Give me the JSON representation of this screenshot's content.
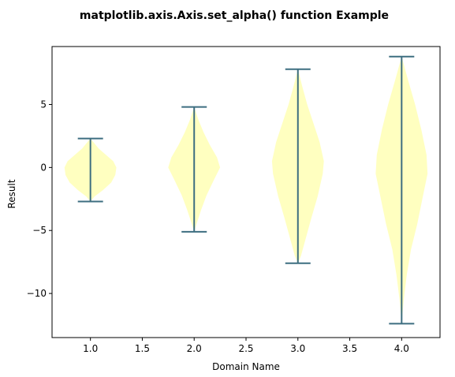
{
  "chart_data": {
    "type": "violin",
    "title": "matplotlib.axis.Axis.set_alpha() function Example",
    "xlabel": "Domain Name",
    "ylabel": "Result",
    "xlim": [
      0.63,
      4.37
    ],
    "ylim": [
      -13.5,
      9.6
    ],
    "xticks": [
      1.0,
      1.5,
      2.0,
      2.5,
      3.0,
      3.5,
      4.0
    ],
    "xtick_labels": [
      "1.0",
      "1.5",
      "2.0",
      "2.5",
      "3.0",
      "3.5",
      "4.0"
    ],
    "yticks": [
      5,
      0,
      -5,
      -10
    ],
    "ytick_labels": [
      "5",
      "0",
      "−5",
      "−10"
    ],
    "grid": false,
    "colors": {
      "body_fill": "#ffffc0",
      "line": "#3d6e80"
    },
    "violins": [
      {
        "position": 1,
        "min": -2.7,
        "max": 2.3,
        "profile": [
          [
            -2.7,
            0.0
          ],
          [
            -2.3,
            0.04
          ],
          [
            -1.8,
            0.12
          ],
          [
            -1.2,
            0.2
          ],
          [
            -0.6,
            0.24
          ],
          [
            0.0,
            0.25
          ],
          [
            0.5,
            0.22
          ],
          [
            1.0,
            0.15
          ],
          [
            1.5,
            0.08
          ],
          [
            2.0,
            0.03
          ],
          [
            2.3,
            0.0
          ]
        ]
      },
      {
        "position": 2,
        "min": -5.1,
        "max": 4.8,
        "profile": [
          [
            -5.1,
            0.0
          ],
          [
            -4.3,
            0.03
          ],
          [
            -3.3,
            0.07
          ],
          [
            -2.2,
            0.12
          ],
          [
            -1.0,
            0.19
          ],
          [
            0.0,
            0.25
          ],
          [
            0.8,
            0.22
          ],
          [
            1.8,
            0.15
          ],
          [
            2.8,
            0.09
          ],
          [
            3.8,
            0.04
          ],
          [
            4.8,
            0.0
          ]
        ]
      },
      {
        "position": 3,
        "min": -7.6,
        "max": 7.8,
        "profile": [
          [
            -7.6,
            0.0
          ],
          [
            -7.0,
            0.03
          ],
          [
            -5.5,
            0.08
          ],
          [
            -4.0,
            0.13
          ],
          [
            -2.3,
            0.19
          ],
          [
            -0.5,
            0.24
          ],
          [
            0.5,
            0.25
          ],
          [
            2.0,
            0.21
          ],
          [
            3.5,
            0.15
          ],
          [
            5.0,
            0.09
          ],
          [
            6.5,
            0.04
          ],
          [
            7.8,
            0.0
          ]
        ]
      },
      {
        "position": 4,
        "min": -12.4,
        "max": 8.8,
        "profile": [
          [
            -12.4,
            0.0
          ],
          [
            -10.5,
            0.02
          ],
          [
            -8.5,
            0.05
          ],
          [
            -6.5,
            0.09
          ],
          [
            -4.5,
            0.15
          ],
          [
            -2.5,
            0.2
          ],
          [
            -0.5,
            0.25
          ],
          [
            1.0,
            0.24
          ],
          [
            3.0,
            0.19
          ],
          [
            5.0,
            0.13
          ],
          [
            7.0,
            0.06
          ],
          [
            8.8,
            0.0
          ]
        ]
      }
    ]
  }
}
